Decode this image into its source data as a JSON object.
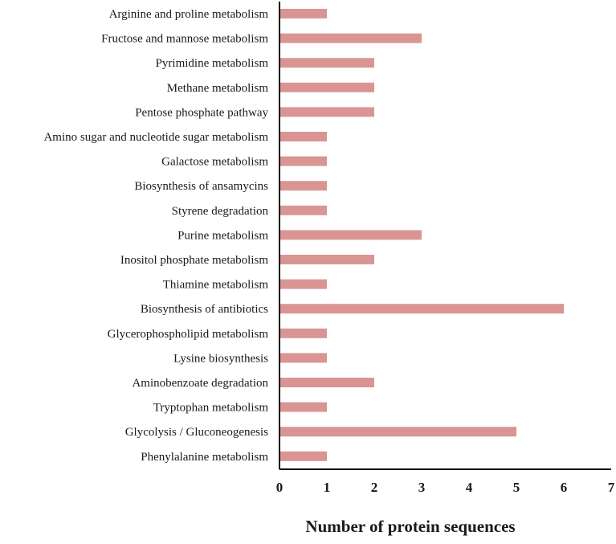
{
  "chart_data": {
    "type": "bar",
    "orientation": "horizontal",
    "title": "",
    "xlabel": "Number of protein sequences",
    "ylabel": "",
    "xlim": [
      0,
      7
    ],
    "xticks": [
      0,
      1,
      2,
      3,
      4,
      5,
      6,
      7
    ],
    "grid": false,
    "legend": "none",
    "categories": [
      "Arginine and proline metabolism",
      "Fructose and mannose metabolism",
      "Pyrimidine metabolism",
      "Methane metabolism",
      "Pentose phosphate pathway",
      "Amino sugar and nucleotide sugar metabolism",
      "Galactose metabolism",
      "Biosynthesis of ansamycins",
      "Styrene degradation",
      "Purine metabolism",
      "Inositol phosphate metabolism",
      "Thiamine metabolism",
      "Biosynthesis of antibiotics",
      "Glycerophospholipid metabolism",
      "Lysine biosynthesis",
      "Aminobenzoate degradation",
      "Tryptophan metabolism",
      "Glycolysis / Gluconeogenesis",
      "Phenylalanine metabolism"
    ],
    "values": [
      1,
      3,
      2,
      2,
      2,
      1,
      1,
      1,
      1,
      3,
      2,
      1,
      6,
      1,
      1,
      2,
      1,
      5,
      1
    ],
    "bar_color": "#D99594"
  }
}
